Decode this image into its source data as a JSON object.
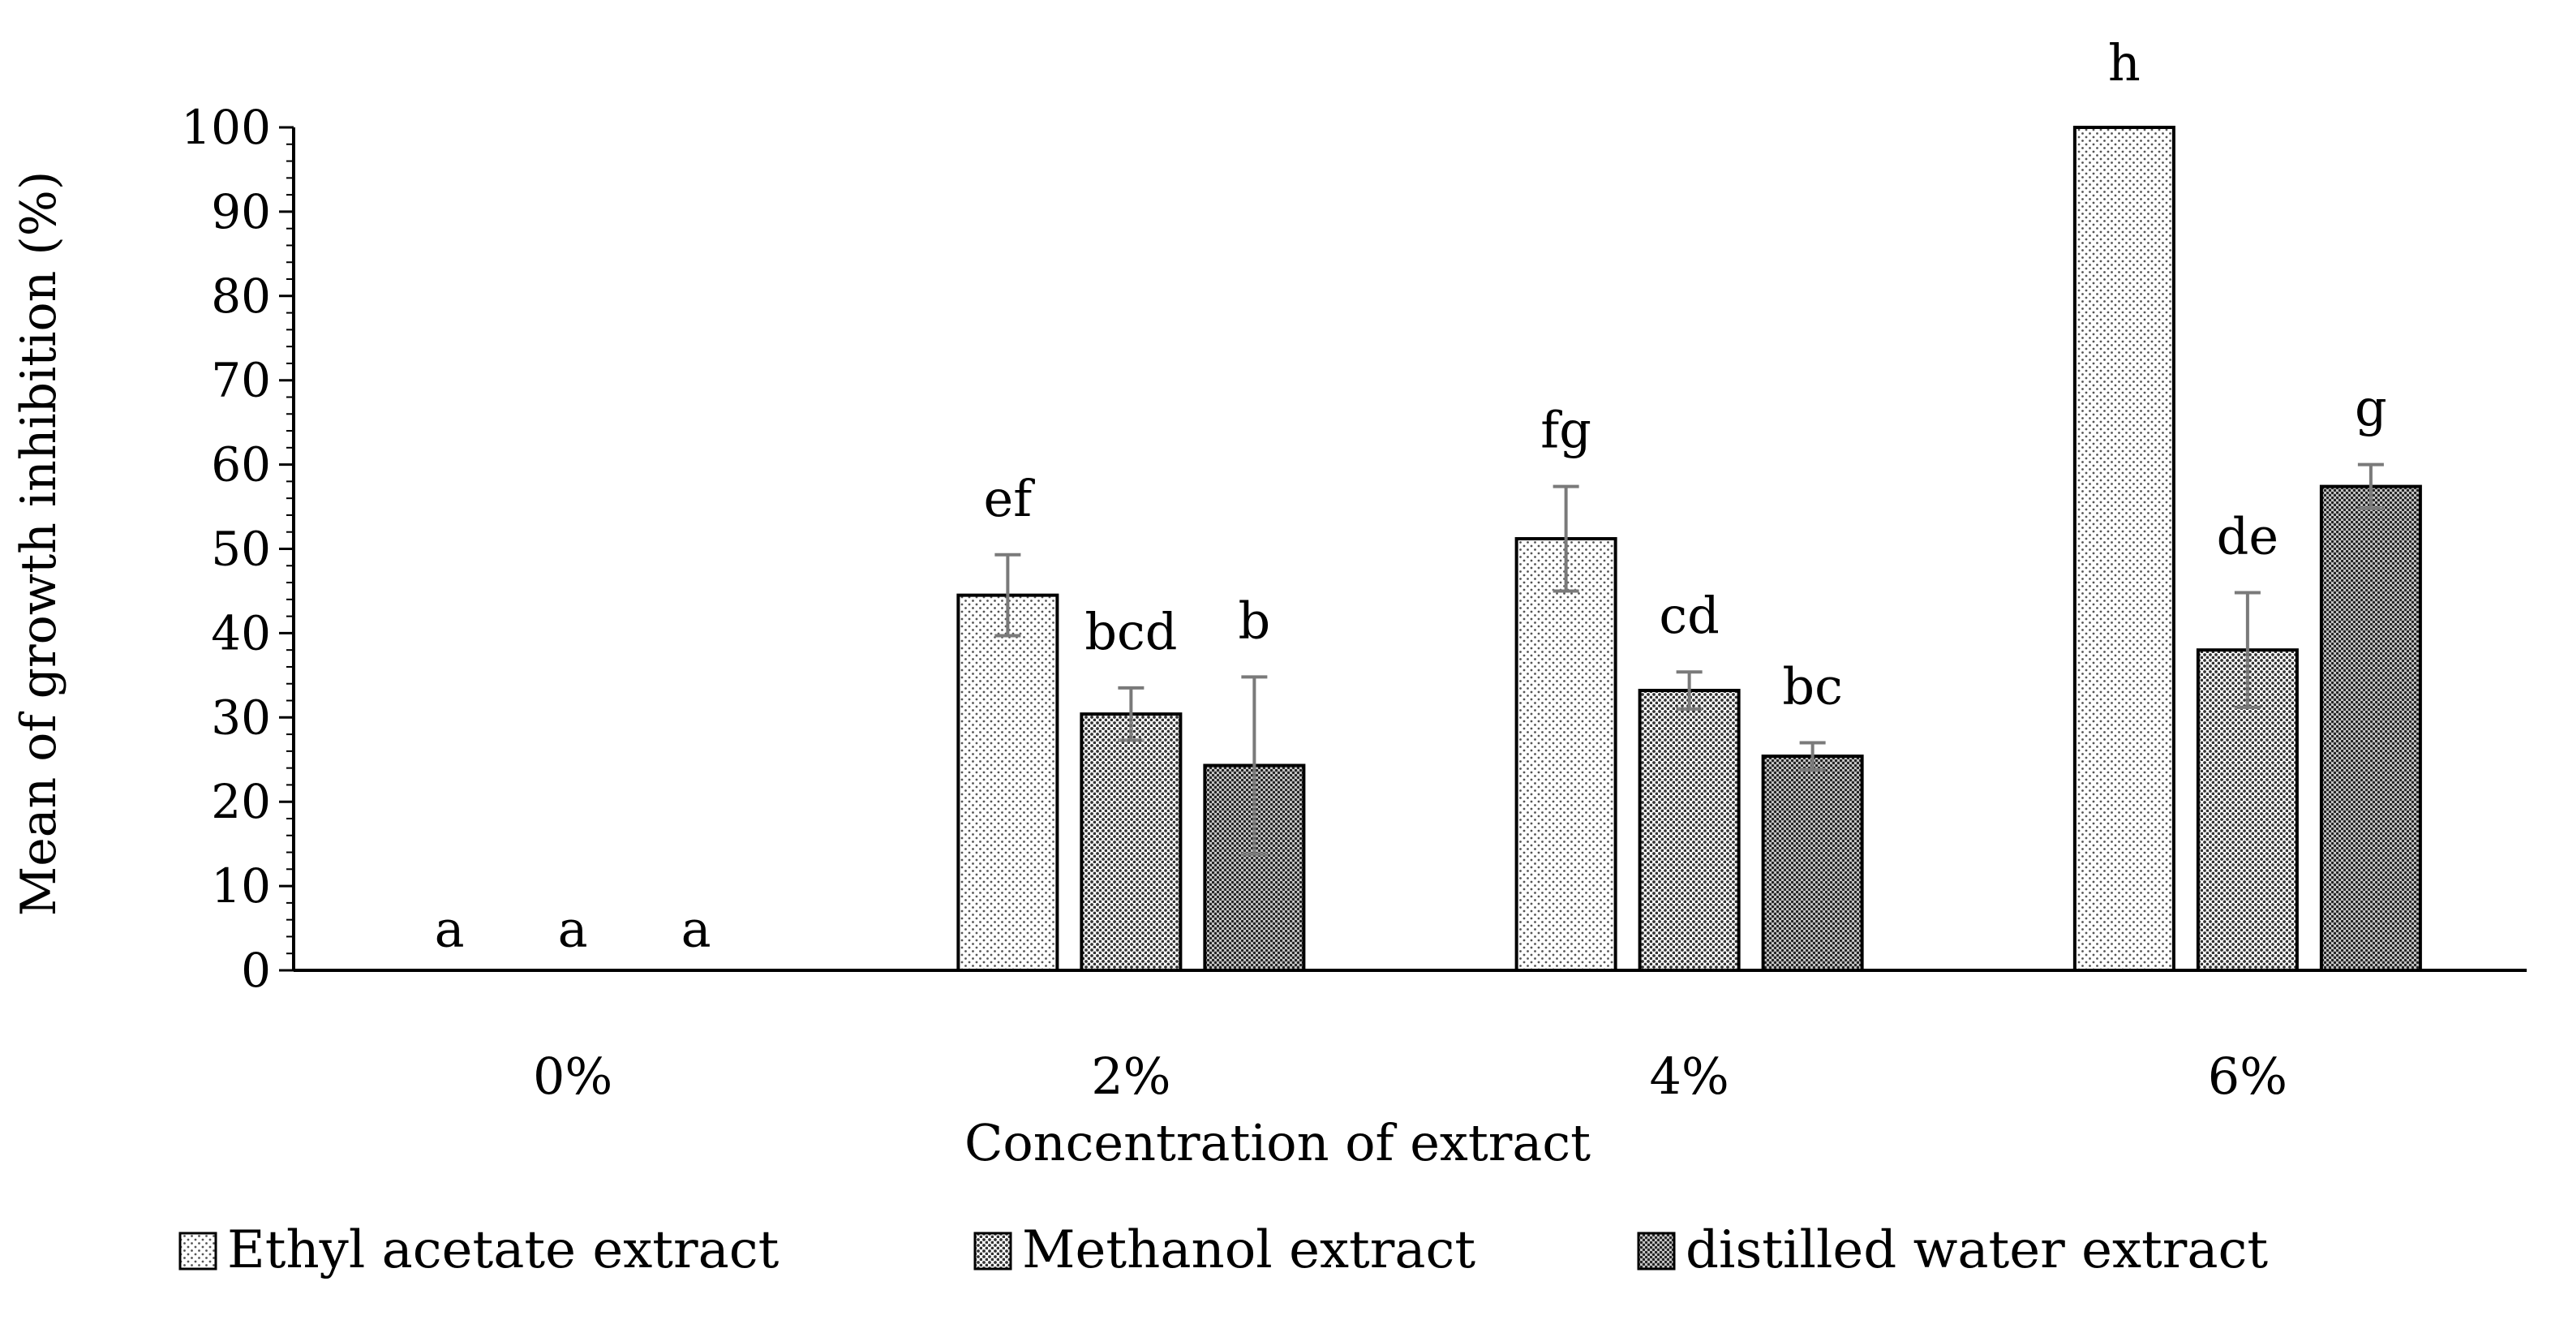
{
  "chart_data": {
    "type": "bar",
    "title": "",
    "xlabel": "Concentration of extract",
    "ylabel": "Mean of growth inhibition (%)",
    "ylim": [
      0,
      100
    ],
    "yticks": [
      0,
      10,
      20,
      30,
      40,
      50,
      60,
      70,
      80,
      90,
      100
    ],
    "categories": [
      "0%",
      "2%",
      "4%",
      "6%"
    ],
    "legend_position": "bottom",
    "series": [
      {
        "name": "Ethyl acetate extract",
        "pattern": "fine-dots",
        "values": [
          0,
          44.5,
          51.2,
          100
        ],
        "errors": [
          0,
          4.8,
          6.2,
          0
        ],
        "letters": [
          "a",
          "ef",
          "fg",
          "h"
        ]
      },
      {
        "name": "Methanol extract",
        "pattern": "medium-dots",
        "values": [
          0,
          30.4,
          33.2,
          38.0
        ],
        "errors": [
          0,
          3.1,
          2.2,
          6.8
        ],
        "letters": [
          "a",
          "bcd",
          "cd",
          "de"
        ]
      },
      {
        "name": "distilled water extract",
        "pattern": "dense-dots",
        "values": [
          0,
          24.3,
          25.4,
          57.4
        ],
        "errors": [
          0,
          10.5,
          1.6,
          2.6
        ],
        "letters": [
          "a",
          "b",
          "bc",
          "g"
        ]
      }
    ]
  }
}
